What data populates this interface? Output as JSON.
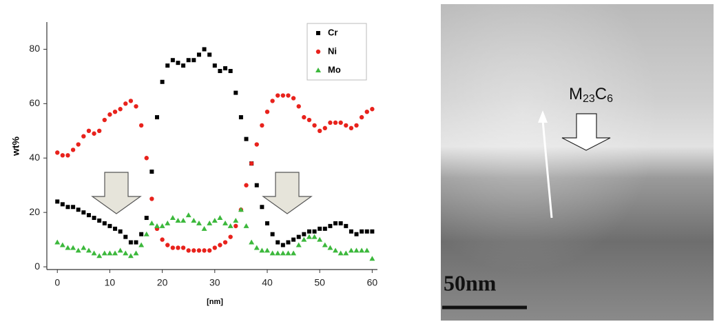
{
  "chart_data": {
    "type": "scatter",
    "ylabel": "wt%",
    "xlabel": "[nm]",
    "x": [
      0,
      1,
      2,
      3,
      4,
      5,
      6,
      7,
      8,
      9,
      10,
      11,
      12,
      13,
      14,
      15,
      16,
      17,
      18,
      19,
      20,
      21,
      22,
      23,
      24,
      25,
      26,
      27,
      28,
      29,
      30,
      31,
      32,
      33,
      34,
      35,
      36,
      37,
      38,
      39,
      40,
      41,
      42,
      43,
      44,
      45,
      46,
      47,
      48,
      49,
      50,
      51,
      52,
      53,
      54,
      55,
      56,
      57,
      58,
      59,
      60
    ],
    "series": [
      {
        "name": "Cr",
        "color": "#000000",
        "marker": "square",
        "values": [
          24,
          23,
          22,
          22,
          21,
          20,
          19,
          18,
          17,
          16,
          15,
          14,
          13,
          11,
          9,
          9,
          12,
          18,
          35,
          55,
          68,
          74,
          76,
          75,
          74,
          76,
          76,
          78,
          80,
          78,
          74,
          72,
          73,
          72,
          64,
          55,
          47,
          38,
          30,
          22,
          16,
          12,
          9,
          8,
          9,
          10,
          11,
          12,
          13,
          13,
          14,
          14,
          15,
          16,
          16,
          15,
          13,
          12,
          13,
          13,
          13
        ]
      },
      {
        "name": "Ni",
        "color": "#e8221c",
        "marker": "circle",
        "values": [
          42,
          41,
          41,
          43,
          45,
          48,
          50,
          49,
          50,
          54,
          56,
          57,
          58,
          60,
          61,
          59,
          52,
          40,
          25,
          14,
          10,
          8,
          7,
          7,
          7,
          6,
          6,
          6,
          6,
          6,
          7,
          8,
          9,
          11,
          15,
          21,
          30,
          38,
          45,
          52,
          57,
          61,
          63,
          63,
          63,
          62,
          59,
          55,
          54,
          52,
          50,
          51,
          53,
          53,
          53,
          52,
          51,
          52,
          55,
          57,
          58
        ]
      },
      {
        "name": "Mo",
        "color": "#3cb83c",
        "marker": "triangle",
        "values": [
          9,
          8,
          7,
          7,
          6,
          7,
          6,
          5,
          4,
          5,
          5,
          5,
          6,
          5,
          4,
          5,
          8,
          12,
          16,
          15,
          15,
          16,
          18,
          17,
          17,
          19,
          17,
          16,
          14,
          16,
          17,
          18,
          16,
          15,
          17,
          21,
          15,
          9,
          7,
          6,
          6,
          5,
          5,
          5,
          5,
          5,
          8,
          10,
          11,
          11,
          10,
          8,
          7,
          6,
          5,
          5,
          6,
          6,
          6,
          6,
          3
        ]
      }
    ],
    "xlim": [
      -2,
      61
    ],
    "ylim": [
      -1,
      90
    ],
    "xticks": [
      0,
      10,
      20,
      30,
      40,
      50,
      60
    ],
    "yticks": [
      0,
      20,
      40,
      60,
      80
    ],
    "legend": "upper-right"
  },
  "micrograph": {
    "phase_label": {
      "base1": "M",
      "sub1": "23",
      "base2": "C",
      "sub2": "6"
    },
    "scale_bar": "50nm"
  }
}
